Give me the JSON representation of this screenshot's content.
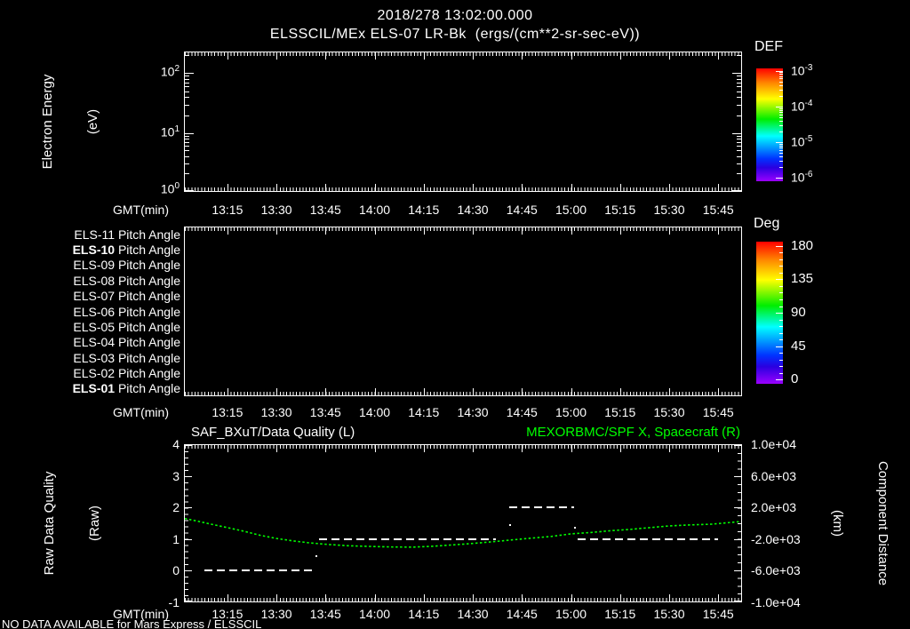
{
  "header": {
    "timestamp": "2018/278 13:02:00.000",
    "title": "ELSSCIL/MEx ELS-07 LR-Bk  (ergs/(cm**2-sr-sec-eV))"
  },
  "time_axis": {
    "label": "GMT(min)",
    "start": "13:02",
    "end": "15:52",
    "ticks": [
      "13:15",
      "13:30",
      "13:45",
      "14:00",
      "14:15",
      "14:30",
      "14:45",
      "15:00",
      "15:15",
      "15:30",
      "15:45"
    ]
  },
  "energy_panel": {
    "ylabel": "Electron Energy",
    "ylabel_units": "(eV)",
    "ytick_exponents": [
      "2",
      "1",
      "0"
    ]
  },
  "def_colorbar": {
    "title": "DEF",
    "tick_exponents": [
      "-3",
      "-4",
      "-5",
      "-6"
    ]
  },
  "pitch_panel": {
    "rows": [
      {
        "prefix": "ELS-11",
        "text": "Pitch Angle",
        "bold": false
      },
      {
        "prefix": "ELS-10",
        "text": "Pitch Angle",
        "bold": true
      },
      {
        "prefix": "ELS-09",
        "text": "Pitch Angle",
        "bold": false
      },
      {
        "prefix": "ELS-08",
        "text": "Pitch Angle",
        "bold": false
      },
      {
        "prefix": "ELS-07",
        "text": "Pitch Angle",
        "bold": false
      },
      {
        "prefix": "ELS-06",
        "text": "Pitch Angle",
        "bold": false
      },
      {
        "prefix": "ELS-05",
        "text": "Pitch Angle",
        "bold": false
      },
      {
        "prefix": "ELS-04",
        "text": "Pitch Angle",
        "bold": false
      },
      {
        "prefix": "ELS-03",
        "text": "Pitch Angle",
        "bold": false
      },
      {
        "prefix": "ELS-02",
        "text": "Pitch Angle",
        "bold": false
      },
      {
        "prefix": "ELS-01",
        "text": "Pitch Angle",
        "bold": true
      }
    ]
  },
  "deg_colorbar": {
    "title": "Deg",
    "ticks": [
      "180",
      "135",
      "90",
      "45",
      "0"
    ]
  },
  "quality_panel": {
    "title_left": "SAF_BXuT/Data Quality (L)",
    "title_right": "MEXORBMC/SPF X, Spacecraft (R)",
    "ylabel": "Raw Data Quality",
    "ylabel_units": "(Raw)",
    "yticks_left": [
      "4",
      "3",
      "2",
      "1",
      "0",
      "-1"
    ],
    "yticks_right": [
      "1.0e+04",
      "6.0e+03",
      "2.0e+03",
      "-2.0e+03",
      "-6.0e+03",
      "-1.0e+04"
    ],
    "ylabel_right": "Component Distance",
    "ylabel_right_units": "(km)"
  },
  "footer": {
    "status": "NO DATA AVAILABLE for Mars Express / ELSSCIL"
  },
  "colors": {
    "background": "#000000",
    "foreground": "#ffffff",
    "accent_green": "#00ff00"
  },
  "chart_data": [
    {
      "type": "heatmap",
      "title": "ELSSCIL/MEx ELS-07 LR-Bk (ergs/(cm**2-sr-sec-eV))",
      "ylabel": "Electron Energy (eV)",
      "yscale": "log",
      "ylim": [
        1,
        100
      ],
      "xlabel": "GMT(min)",
      "x_range": [
        "13:02",
        "15:52"
      ],
      "xticks": [
        "13:15",
        "13:30",
        "13:45",
        "14:00",
        "14:15",
        "14:30",
        "14:45",
        "15:00",
        "15:15",
        "15:30",
        "15:45"
      ],
      "colorbar": {
        "title": "DEF",
        "scale": "log",
        "tick_values": [
          0.001,
          0.0001,
          1e-05,
          1e-06
        ]
      },
      "no_data": true,
      "values": []
    },
    {
      "type": "heatmap",
      "rows": [
        "ELS-11 Pitch Angle",
        "ELS-10 Pitch Angle",
        "ELS-09 Pitch Angle",
        "ELS-08 Pitch Angle",
        "ELS-07 Pitch Angle",
        "ELS-06 Pitch Angle",
        "ELS-05 Pitch Angle",
        "ELS-04 Pitch Angle",
        "ELS-03 Pitch Angle",
        "ELS-02 Pitch Angle",
        "ELS-01 Pitch Angle"
      ],
      "xlabel": "GMT(min)",
      "x_range": [
        "13:02",
        "15:52"
      ],
      "colorbar": {
        "title": "Deg",
        "ticks": [
          180,
          135,
          90,
          45,
          0
        ]
      },
      "no_data": true,
      "values": []
    },
    {
      "type": "line",
      "title_left": "SAF_BXuT/Data Quality (L)",
      "title_right": "MEXORBMC/SPF X, Spacecraft (R)",
      "xlabel": "GMT(min)",
      "x_range": [
        "13:02",
        "15:52"
      ],
      "ylim_left": [
        -1,
        4
      ],
      "ylim_right": [
        -10000,
        10000
      ],
      "ylabel_left": "Raw Data Quality (Raw)",
      "ylabel_right": "Component Distance (km)",
      "series": [
        {
          "name": "SAF_BXuT/Data Quality (L)",
          "axis": "left",
          "style": "white-dashed-step",
          "segments": [
            {
              "value": 0,
              "t0": "13:08",
              "t1": "13:42"
            },
            {
              "value": 1,
              "t0": "13:43",
              "t1": "14:37"
            },
            {
              "value": 2,
              "t0": "14:41",
              "t1": "15:01"
            },
            {
              "value": 1,
              "t0": "15:02",
              "t1": "15:45"
            }
          ],
          "transition_dots": [
            [
              "13:42",
              0.49
            ],
            [
              "14:41",
              1.48
            ],
            [
              "15:01",
              1.39
            ]
          ]
        },
        {
          "name": "MEXORBMC/SPF X, Spacecraft (R)",
          "axis": "right",
          "style": "green-dotted",
          "points": [
            [
              "13:02",
              600
            ],
            [
              "13:06",
              260
            ],
            [
              "13:10",
              -110
            ],
            [
              "13:15",
              -560
            ],
            [
              "13:20",
              -1010
            ],
            [
              "13:25",
              -1530
            ],
            [
              "13:30",
              -1940
            ],
            [
              "13:35",
              -2250
            ],
            [
              "13:40",
              -2500
            ],
            [
              "13:46",
              -2720
            ],
            [
              "13:52",
              -2870
            ],
            [
              "14:00",
              -2980
            ],
            [
              "14:06",
              -3030
            ],
            [
              "14:12",
              -3040
            ],
            [
              "14:18",
              -2930
            ],
            [
              "14:24",
              -2760
            ],
            [
              "14:30",
              -2580
            ],
            [
              "14:36",
              -2360
            ],
            [
              "14:42",
              -2130
            ],
            [
              "14:48",
              -1900
            ],
            [
              "14:54",
              -1680
            ],
            [
              "15:00",
              -1350
            ],
            [
              "15:06",
              -1180
            ],
            [
              "15:12",
              -960
            ],
            [
              "15:18",
              -780
            ],
            [
              "15:24",
              -560
            ],
            [
              "15:30",
              -340
            ],
            [
              "15:36",
              -220
            ],
            [
              "15:43",
              -110
            ],
            [
              "15:52",
              230
            ]
          ]
        }
      ]
    }
  ]
}
